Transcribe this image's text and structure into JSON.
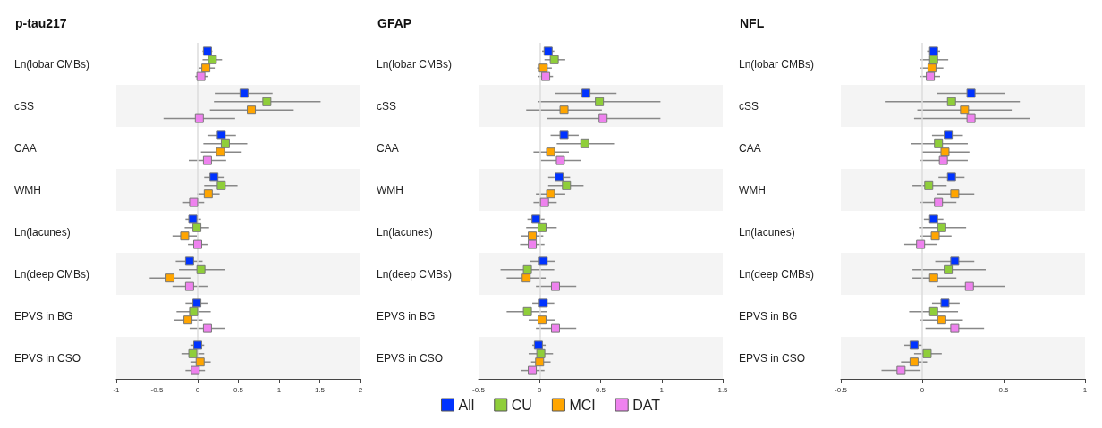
{
  "chart_data": [
    {
      "type": "scatter",
      "orientation": "horizontal",
      "title": "p-tau217",
      "marker": "square",
      "legend": false,
      "categories": [
        "Ln(lobar CMBs)",
        "cSS",
        "CAA",
        "WMH",
        "Ln(lacunes)",
        "Ln(deep CMBs)",
        "EPVS in BG",
        "EPVS in CSO"
      ],
      "xlim": [
        -1,
        2
      ],
      "xticks": [
        -1,
        -0.5,
        0,
        0.5,
        1,
        1.5,
        2
      ],
      "ref_lines": [
        {
          "axis": "x",
          "value": 0,
          "color": "#dddddd"
        }
      ],
      "series": [
        {
          "color": "#0033ff",
          "values": [
            0.12,
            0.57,
            0.29,
            0.2,
            -0.06,
            -0.1,
            -0.01,
            0
          ],
          "errors": [
            [
              0.06,
              0.18
            ],
            [
              0.21,
              0.92
            ],
            [
              0.12,
              0.47
            ],
            [
              0.08,
              0.32
            ],
            [
              -0.15,
              0.04
            ],
            [
              -0.27,
              0.06
            ],
            [
              -0.15,
              0.12
            ],
            [
              -0.09,
              0.08
            ]
          ]
        },
        {
          "color": "#8fce3a",
          "values": [
            0.18,
            0.85,
            0.34,
            0.29,
            -0.01,
            0.04,
            -0.05,
            -0.06
          ],
          "errors": [
            [
              0.06,
              0.3
            ],
            [
              0.2,
              1.51
            ],
            [
              0.07,
              0.61
            ],
            [
              0.08,
              0.49
            ],
            [
              -0.16,
              0.14
            ],
            [
              -0.23,
              0.33
            ],
            [
              -0.26,
              0.16
            ],
            [
              -0.2,
              0.08
            ]
          ]
        },
        {
          "color": "#ffa500",
          "values": [
            0.1,
            0.66,
            0.28,
            0.13,
            -0.16,
            -0.34,
            -0.12,
            0.03
          ],
          "errors": [
            [
              0.01,
              0.21
            ],
            [
              0.15,
              1.18
            ],
            [
              0.04,
              0.53
            ],
            [
              -0.01,
              0.27
            ],
            [
              -0.31,
              -0.01
            ],
            [
              -0.59,
              -0.09
            ],
            [
              -0.29,
              0.06
            ],
            [
              -0.09,
              0.16
            ]
          ]
        },
        {
          "color": "#ee82ee",
          "values": [
            0.04,
            0.02,
            0.12,
            -0.05,
            0,
            -0.1,
            0.12,
            -0.03
          ],
          "errors": [
            [
              -0.03,
              0.12
            ],
            [
              -0.42,
              0.46
            ],
            [
              -0.11,
              0.35
            ],
            [
              -0.18,
              0.08
            ],
            [
              -0.12,
              0.12
            ],
            [
              -0.31,
              0.12
            ],
            [
              -0.1,
              0.33
            ],
            [
              -0.15,
              0.09
            ]
          ]
        }
      ]
    },
    {
      "type": "scatter",
      "orientation": "horizontal",
      "title": "GFAP",
      "marker": "square",
      "legend": "bottom",
      "categories": [
        "Ln(lobar CMBs)",
        "cSS",
        "CAA",
        "WMH",
        "Ln(lacunes)",
        "Ln(deep CMBs)",
        "EPVS in BG",
        "EPVS in CSO"
      ],
      "xlim": [
        -0.5,
        1.5
      ],
      "xticks": [
        -0.5,
        0,
        0.5,
        1,
        1.5
      ],
      "ref_lines": [
        {
          "axis": "x",
          "value": 0,
          "color": "#dddddd"
        }
      ],
      "series": [
        {
          "name": "All",
          "color": "#0033ff",
          "values": [
            0.07,
            0.38,
            0.2,
            0.16,
            -0.03,
            0.03,
            0.03,
            -0.01
          ],
          "errors": [
            [
              0.02,
              0.12
            ],
            [
              0.13,
              0.63
            ],
            [
              0.09,
              0.32
            ],
            [
              0.07,
              0.25
            ],
            [
              -0.1,
              0.04
            ],
            [
              -0.08,
              0.13
            ],
            [
              -0.06,
              0.12
            ],
            [
              -0.06,
              0.05
            ]
          ]
        },
        {
          "name": "CU",
          "color": "#8fce3a",
          "values": [
            0.12,
            0.49,
            0.37,
            0.22,
            0.02,
            -0.1,
            -0.1,
            0.01
          ],
          "errors": [
            [
              0.04,
              0.21
            ],
            [
              -0.01,
              0.99
            ],
            [
              0.14,
              0.61
            ],
            [
              0.07,
              0.36
            ],
            [
              -0.11,
              0.14
            ],
            [
              -0.32,
              0.12
            ],
            [
              -0.27,
              0.06
            ],
            [
              -0.09,
              0.11
            ]
          ]
        },
        {
          "name": "MCI",
          "color": "#ffa500",
          "values": [
            0.03,
            0.2,
            0.09,
            0.09,
            -0.06,
            -0.11,
            0.02,
            0
          ],
          "errors": [
            [
              -0.02,
              0.1
            ],
            [
              -0.11,
              0.51
            ],
            [
              -0.05,
              0.24
            ],
            [
              -0.03,
              0.21
            ],
            [
              -0.15,
              0.03
            ],
            [
              -0.27,
              0.05
            ],
            [
              -0.09,
              0.13
            ],
            [
              -0.07,
              0.09
            ]
          ]
        },
        {
          "name": "DAT",
          "color": "#ee82ee",
          "values": [
            0.05,
            0.52,
            0.17,
            0.04,
            -0.06,
            0.13,
            0.13,
            -0.06
          ],
          "errors": [
            [
              -0.01,
              0.11
            ],
            [
              0.06,
              0.99
            ],
            [
              0.01,
              0.34
            ],
            [
              -0.05,
              0.14
            ],
            [
              -0.16,
              0.04
            ],
            [
              -0.03,
              0.3
            ],
            [
              -0.03,
              0.3
            ],
            [
              -0.15,
              0.04
            ]
          ]
        }
      ]
    },
    {
      "type": "scatter",
      "orientation": "horizontal",
      "title": "NFL",
      "marker": "square",
      "legend": false,
      "categories": [
        "Ln(lobar CMBs)",
        "cSS",
        "CAA",
        "WMH",
        "Ln(lacunes)",
        "Ln(deep CMBs)",
        "EPVS in BG",
        "EPVS in CSO"
      ],
      "xlim": [
        -0.5,
        1
      ],
      "xticks": [
        -0.5,
        0,
        0.5,
        1
      ],
      "ref_lines": [
        {
          "axis": "x",
          "value": 0,
          "color": "#dddddd"
        }
      ],
      "series": [
        {
          "color": "#0033ff",
          "values": [
            0.07,
            0.3,
            0.16,
            0.18,
            0.07,
            0.2,
            0.14,
            -0.05
          ],
          "errors": [
            [
              0.03,
              0.11
            ],
            [
              0.09,
              0.51
            ],
            [
              0.06,
              0.25
            ],
            [
              0.1,
              0.26
            ],
            [
              0.01,
              0.13
            ],
            [
              0.08,
              0.32
            ],
            [
              0.06,
              0.23
            ],
            [
              -0.11,
              0
            ]
          ]
        },
        {
          "color": "#8fce3a",
          "values": [
            0.07,
            0.18,
            0.1,
            0.04,
            0.12,
            0.16,
            0.07,
            0.03
          ],
          "errors": [
            [
              -0.01,
              0.16
            ],
            [
              -0.23,
              0.6
            ],
            [
              -0.07,
              0.28
            ],
            [
              -0.06,
              0.15
            ],
            [
              -0.02,
              0.27
            ],
            [
              -0.06,
              0.39
            ],
            [
              -0.08,
              0.22
            ],
            [
              -0.05,
              0.12
            ]
          ]
        },
        {
          "color": "#ffa500",
          "values": [
            0.06,
            0.26,
            0.14,
            0.2,
            0.08,
            0.07,
            0.12,
            -0.05
          ],
          "errors": [
            [
              -0.01,
              0.13
            ],
            [
              -0.03,
              0.55
            ],
            [
              0,
              0.29
            ],
            [
              0.09,
              0.32
            ],
            [
              -0.01,
              0.18
            ],
            [
              -0.06,
              0.21
            ],
            [
              -0.01,
              0.25
            ],
            [
              -0.13,
              0.03
            ]
          ]
        },
        {
          "color": "#ee82ee",
          "values": [
            0.05,
            0.3,
            0.13,
            0.1,
            -0.01,
            0.29,
            0.2,
            -0.13
          ],
          "errors": [
            [
              -0.01,
              0.11
            ],
            [
              -0.05,
              0.66
            ],
            [
              -0.01,
              0.28
            ],
            [
              -0.01,
              0.21
            ],
            [
              -0.11,
              0.09
            ],
            [
              0.09,
              0.51
            ],
            [
              0.02,
              0.38
            ],
            [
              -0.25,
              -0.01
            ]
          ]
        }
      ]
    }
  ]
}
